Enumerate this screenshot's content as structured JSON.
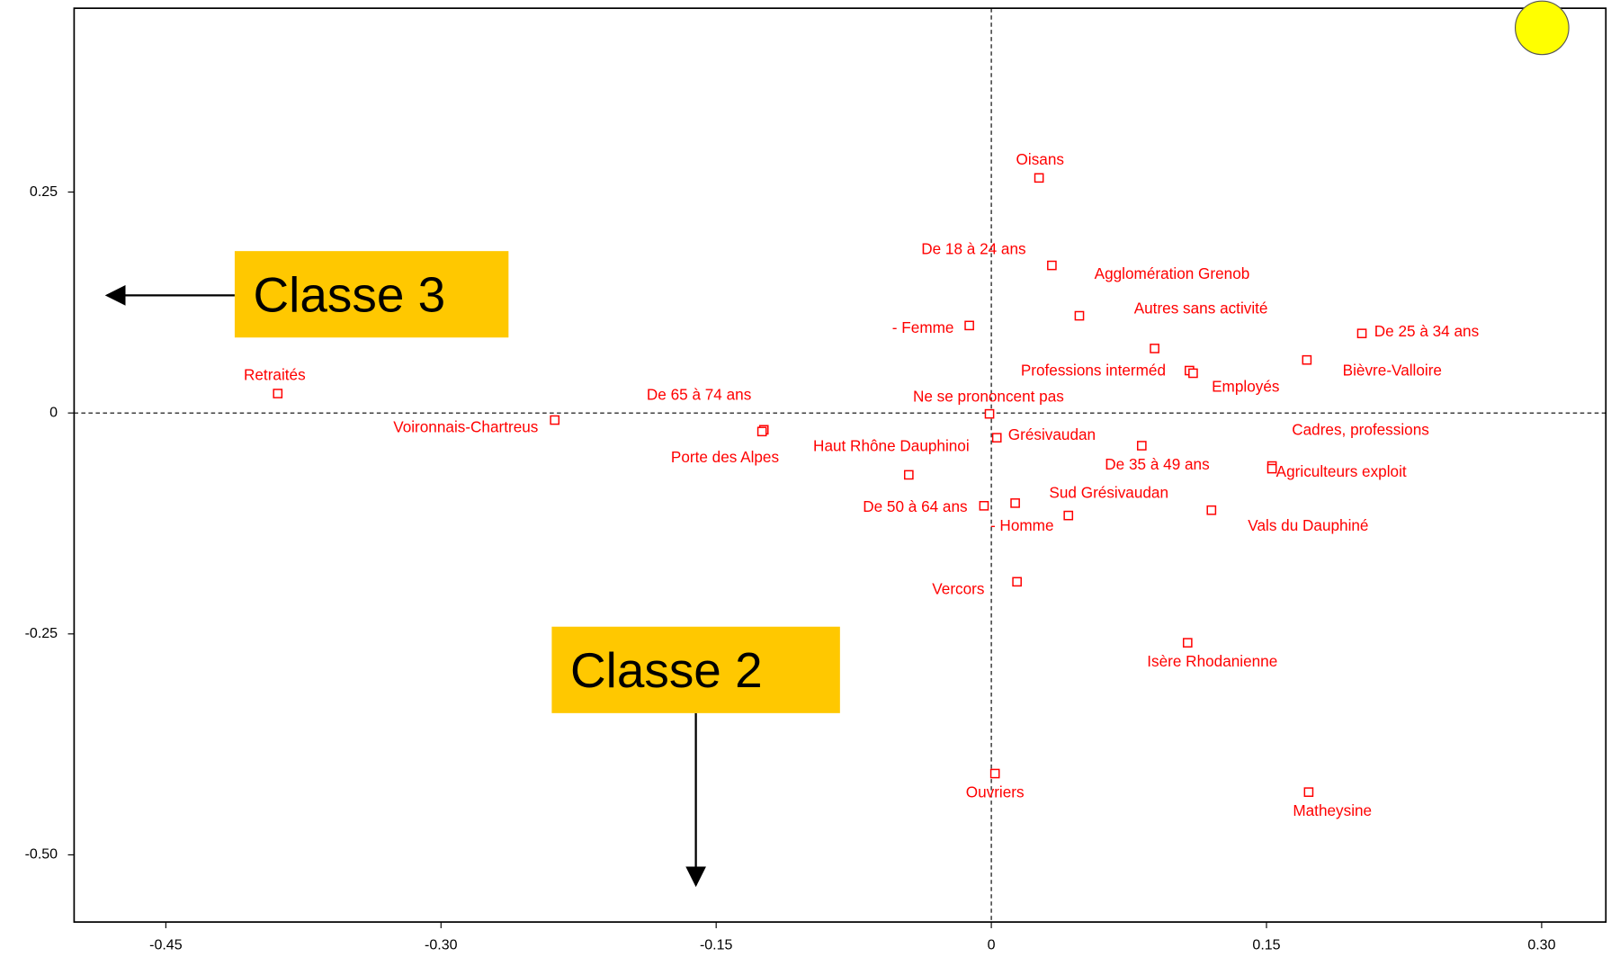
{
  "chart_data": {
    "type": "scatter",
    "color": "#ff0000",
    "labels": [
      "Oisans",
      "De 18 à 24 ans",
      "Agglomération Grenob",
      "Autres sans activité",
      "- Femme",
      "De 25 à 34 ans",
      "Bièvre-Valloire",
      "Professions interméd",
      "Employés",
      "Retraités",
      "Voironnais-Chartreus",
      "De 65 à 74 ans",
      "Porte des Alpes",
      "Ne se prononcent pas",
      "Grésivaudan",
      "De 35 à 49 ans",
      "Cadres, professions",
      "Agriculteurs exploit",
      "Haut Rhône Dauphinoi",
      "De 50 à 64 ans",
      "Sud Grésivaudan",
      "- Homme",
      "Vals du Dauphiné",
      "Vercors",
      "Isère Rhodanienne",
      "Ouvriers",
      "Matheysine"
    ],
    "x": [
      0.026,
      0.033,
      0.048,
      0.089,
      -0.012,
      0.202,
      0.172,
      0.108,
      0.11,
      -0.389,
      -0.238,
      -0.124,
      -0.125,
      -0.001,
      0.003,
      0.082,
      0.153,
      0.153,
      -0.045,
      -0.004,
      0.013,
      0.042,
      0.12,
      0.014,
      0.107,
      0.002,
      0.173
    ],
    "y": [
      0.266,
      0.167,
      0.11,
      0.073,
      0.099,
      0.09,
      0.06,
      0.048,
      0.045,
      0.022,
      -0.008,
      -0.019,
      -0.021,
      -0.001,
      -0.028,
      -0.037,
      -0.06,
      -0.063,
      -0.07,
      -0.105,
      -0.102,
      -0.116,
      -0.11,
      -0.191,
      -0.26,
      -0.408,
      -0.429
    ],
    "xlim": [
      -0.5,
      0.335
    ],
    "ylim": [
      -0.576,
      0.458
    ],
    "xticks": [
      -0.45,
      {
        "value": -0.3,
        "label": "-0.30"
      },
      -0.15,
      0,
      0.15,
      {
        "value": 0.3,
        "label": "0.30"
      }
    ],
    "yticks": [
      0.25,
      0,
      -0.25,
      {
        "value": -0.5,
        "label": "-0.50"
      }
    ],
    "annotations": [
      "Classe 3",
      "Classe 2"
    ]
  }
}
